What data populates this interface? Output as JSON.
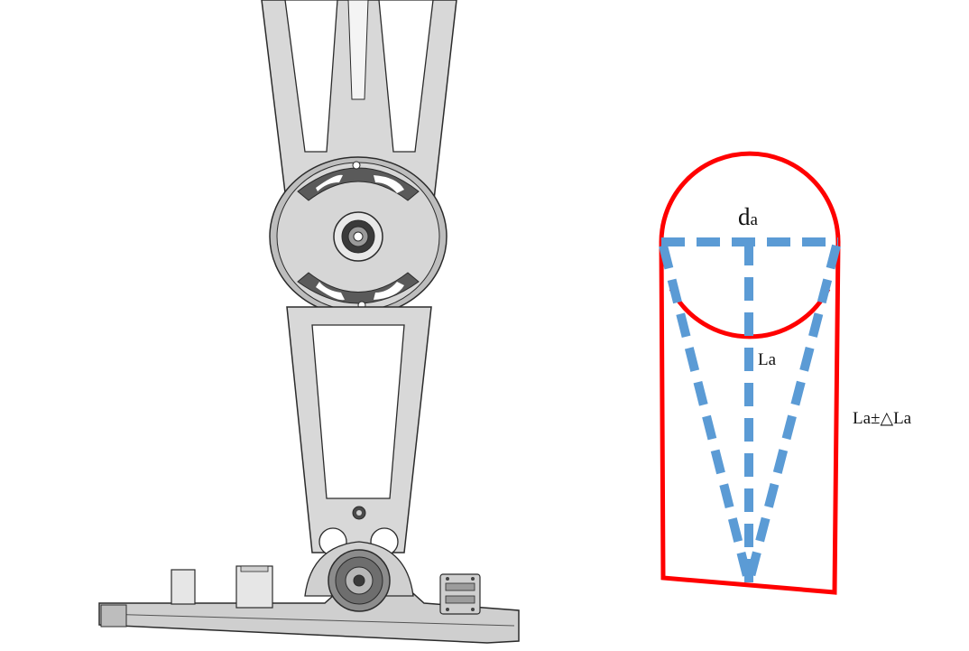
{
  "diagram": {
    "labels": {
      "diameter": "d",
      "diameter_sub": "a",
      "length": "La",
      "length_tolerance": "La±△La"
    },
    "colors": {
      "outline": "#ff0000",
      "dashed_lines": "#5b9bd5",
      "mechanism_fill": "#d8d8d8",
      "mechanism_stroke": "#2b2b2b"
    }
  }
}
